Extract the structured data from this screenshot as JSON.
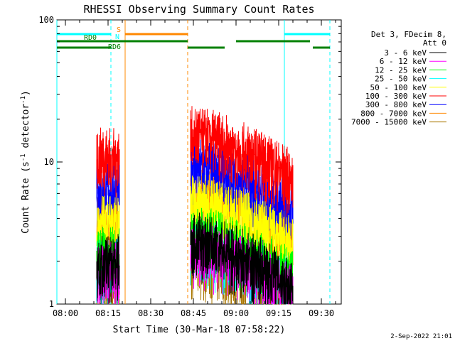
{
  "chart_data": {
    "type": "line",
    "title": "RHESSI Observing Summary Count Rates",
    "ylabel": "Count Rate (s",
    "ylabel_sup": "-1",
    "ylabel_tail": " detector",
    "ylabel_tail_sup": "-1",
    "ylabel_close": ")",
    "xlabel": "Start Time (30-Mar-18 07:58:22)",
    "y_scale": "log",
    "ylim": [
      1,
      100
    ],
    "xlim": [
      "07:57",
      "09:37"
    ],
    "x_ticks": [
      "08:00",
      "08:15",
      "08:30",
      "08:45",
      "09:00",
      "09:15",
      "09:30"
    ],
    "y_ticks": [
      "1",
      "10",
      "100"
    ],
    "legend_header": [
      "Det 3, FDecim 8,",
      "Att 0"
    ],
    "series": [
      {
        "name": "3 - 6 keV",
        "color": "#000000",
        "base": 1.6
      },
      {
        "name": "6 - 12 keV",
        "color": "#ff00ff",
        "base": 1.4
      },
      {
        "name": "12 - 25 keV",
        "color": "#00ff00",
        "base": 1.8
      },
      {
        "name": "25 - 50 keV",
        "color": "#00ffff",
        "base": 1.5
      },
      {
        "name": "50 - 100 keV",
        "color": "#ffff00",
        "base": 3.0
      },
      {
        "name": "100 - 300 keV",
        "color": "#ff0000",
        "base": 9.0
      },
      {
        "name": "300 - 800 keV",
        "color": "#0000ff",
        "base": 5.5
      },
      {
        "name": "800 - 7000 keV",
        "color": "#ff8800",
        "base": 3.5
      },
      {
        "name": "7000 - 15000 keV",
        "color": "#aa7700",
        "base": 1.2
      }
    ],
    "data_intervals": [
      {
        "start": "08:11",
        "end": "08:19"
      },
      {
        "start": "08:44",
        "end": "09:20"
      }
    ],
    "flags": [
      {
        "label": "N",
        "color": "#00ffff",
        "segments": [
          [
            "07:57",
            "08:16"
          ],
          [
            "09:17",
            "09:33"
          ]
        ],
        "level": "top"
      },
      {
        "label": "S",
        "color": "#ff8800",
        "segments": [
          [
            "08:21",
            "08:43"
          ]
        ],
        "level": "top"
      },
      {
        "label": "RD0",
        "color": "#008000",
        "segments": [
          [
            "07:57",
            "08:16"
          ]
        ],
        "level": "mid"
      },
      {
        "label": "RD6",
        "color": "#008000",
        "segments": [
          [
            "08:16",
            "08:43"
          ],
          [
            "09:00",
            "09:26"
          ]
        ],
        "level": "mid"
      },
      {
        "label": "",
        "color": "#008000",
        "segments": [
          [
            "07:57",
            "08:16"
          ],
          [
            "08:43",
            "08:56"
          ],
          [
            "09:27",
            "09:33"
          ]
        ],
        "level": "low"
      }
    ],
    "vlines": [
      {
        "t": "07:57",
        "color": "#00ffff",
        "dash": false
      },
      {
        "t": "08:16",
        "color": "#00ffff",
        "dash": true
      },
      {
        "t": "08:21",
        "color": "#ff8800",
        "dash": false
      },
      {
        "t": "08:43",
        "color": "#ff8800",
        "dash": true
      },
      {
        "t": "09:17",
        "color": "#00ffff",
        "dash": false
      },
      {
        "t": "09:33",
        "color": "#00ffff",
        "dash": true
      }
    ],
    "grid": false,
    "legend_position": "right"
  },
  "footer_date": "2-Sep-2022 21:01"
}
